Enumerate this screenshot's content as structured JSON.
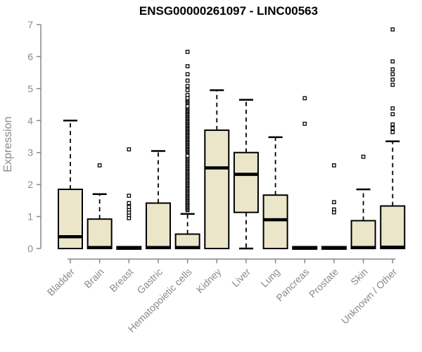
{
  "chart_data": {
    "type": "boxplot",
    "title": "ENSG00000261097 - LINC00563",
    "ylabel": "Expression",
    "xlabel": "",
    "ylim": [
      0,
      7
    ],
    "yticks": [
      0,
      1,
      2,
      3,
      4,
      5,
      6,
      7
    ],
    "grid": false,
    "legend": "none",
    "categories": [
      "Bladder",
      "Brain",
      "Breast",
      "Gastric",
      "Hematopoietic cells",
      "Kidney",
      "Liver",
      "Lung",
      "Pancreas",
      "Prostate",
      "Skin",
      "Unknown / Other"
    ],
    "boxes": [
      {
        "category": "Bladder",
        "whisker_low": 0,
        "q1": 0,
        "median": 0.37,
        "q3": 1.85,
        "whisker_high": 4.0,
        "outliers": []
      },
      {
        "category": "Brain",
        "whisker_low": 0,
        "q1": 0,
        "median": 0.03,
        "q3": 0.92,
        "whisker_high": 1.7,
        "outliers": [
          2.6
        ]
      },
      {
        "category": "Breast",
        "whisker_low": 0,
        "q1": 0,
        "median": 0.02,
        "q3": 0.02,
        "whisker_high": 0.02,
        "outliers": [
          3.1,
          1.65,
          1.42,
          1.3,
          1.2,
          1.12,
          1.03,
          0.95
        ]
      },
      {
        "category": "Gastric",
        "whisker_low": 0,
        "q1": 0,
        "median": 0.03,
        "q3": 1.42,
        "whisker_high": 3.05,
        "outliers": []
      },
      {
        "category": "Hematopoietic cells",
        "whisker_low": 0,
        "q1": 0,
        "median": 0.03,
        "q3": 0.45,
        "whisker_high": 1.08,
        "outliers": [
          4.8,
          4.95,
          5.08,
          5.25,
          5.45,
          5.7,
          6.15
        ],
        "outlier_bands": [
          {
            "min": 1.2,
            "max": 2.9,
            "count": 46
          },
          {
            "min": 3.02,
            "max": 4.45,
            "count": 40
          },
          {
            "min": 4.55,
            "max": 4.7,
            "count": 5
          }
        ]
      },
      {
        "category": "Kidney",
        "whisker_low": 0,
        "q1": 0,
        "median": 2.52,
        "q3": 3.7,
        "whisker_high": 4.95,
        "outliers": []
      },
      {
        "category": "Liver",
        "whisker_low": 0,
        "q1": 1.13,
        "median": 2.32,
        "q3": 3.0,
        "whisker_high": 4.65,
        "outliers": []
      },
      {
        "category": "Lung",
        "whisker_low": 0,
        "q1": 0,
        "median": 0.9,
        "q3": 1.67,
        "whisker_high": 3.48,
        "outliers": []
      },
      {
        "category": "Pancreas",
        "whisker_low": 0,
        "q1": 0,
        "median": 0.02,
        "q3": 0.02,
        "whisker_high": 0.02,
        "outliers": [
          4.7,
          3.9
        ]
      },
      {
        "category": "Prostate",
        "whisker_low": 0,
        "q1": 0,
        "median": 0.02,
        "q3": 0.02,
        "whisker_high": 0.02,
        "outliers": [
          2.6,
          1.45,
          1.22,
          1.13
        ]
      },
      {
        "category": "Skin",
        "whisker_low": 0,
        "q1": 0,
        "median": 0.03,
        "q3": 0.87,
        "whisker_high": 1.85,
        "outliers": [
          2.87
        ]
      },
      {
        "category": "Unknown / Other",
        "whisker_low": 0,
        "q1": 0,
        "median": 0.04,
        "q3": 1.33,
        "whisker_high": 3.35,
        "outliers": [
          6.85,
          5.85,
          5.6,
          5.45,
          5.28,
          5.12,
          4.38,
          4.2,
          3.88,
          3.76,
          3.64
        ]
      }
    ]
  },
  "colors": {
    "box_fill": "#EBE6CA",
    "box_border": "#000000",
    "median": "#000000",
    "whisker": "#000000",
    "outlier_fill": "#ffffff",
    "axis": "#888888",
    "tick_label": "#8a8a8a",
    "title": "#000000",
    "background": "#ffffff"
  }
}
